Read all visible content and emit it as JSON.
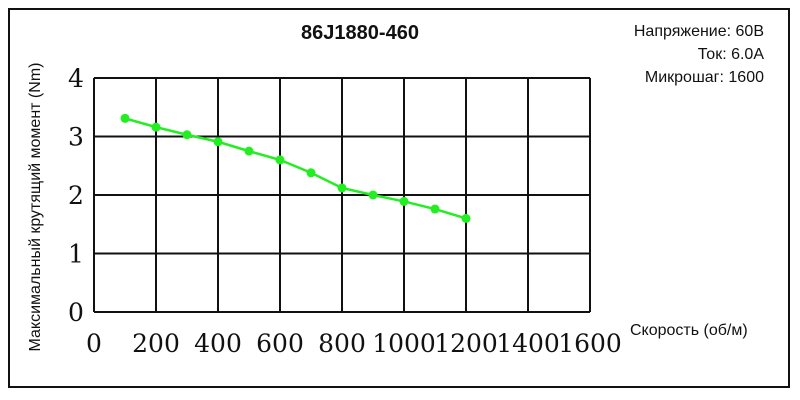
{
  "chart_data": {
    "type": "line",
    "title": "86J1880-460",
    "xlabel": "Скорость (об/м)",
    "ylabel": "Максимальный крутящий момент (Nm)",
    "xlim": [
      0,
      1600
    ],
    "ylim": [
      0,
      4
    ],
    "x_ticks": [
      "0",
      "200",
      "400",
      "600",
      "800",
      "1000",
      "1200",
      "1400",
      "1600"
    ],
    "y_ticks": [
      "0",
      "1",
      "2",
      "3",
      "4"
    ],
    "grid": true,
    "series": [
      {
        "color": "#22ee22",
        "x": [
          100,
          200,
          300,
          400,
          500,
          600,
          700,
          800,
          900,
          1000,
          1100,
          1200
        ],
        "y": [
          3.31,
          3.16,
          3.03,
          2.91,
          2.75,
          2.6,
          2.38,
          2.12,
          2.0,
          1.89,
          1.76,
          1.6
        ]
      }
    ],
    "annotations": [
      "Напряжение: 60В",
      "Ток: 6.0А",
      "Микрошаг: 1600"
    ]
  },
  "colors": {
    "series": "#22ee22",
    "grid": "#111111",
    "frame": "#111111"
  }
}
